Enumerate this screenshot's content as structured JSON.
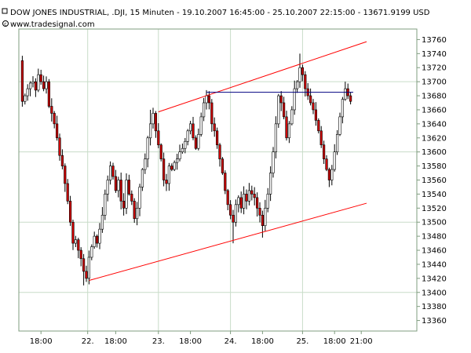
{
  "header": {
    "title": "DOW JONES INDUSTRIAL, .DJI, 15 Minuten - 19.10.2007 16:45:00 - 25.10.2007 22:15:00 - 13671.9199 USD",
    "source": "www.tradesignal.com",
    "title_icon": "square-marker-icon",
    "source_icon": "copyright-icon"
  },
  "colors": {
    "background": "#ffffff",
    "grid": "#c8dcc8",
    "frame": "#7f9c7f",
    "candle_up": "#ffffff",
    "candle_down": "#cc0000",
    "candle_outline": "#000000",
    "channel": "#ff0000",
    "horizontal_line": "#000080"
  },
  "chart_data": {
    "type": "candlestick",
    "title": "DOW JONES INDUSTRIAL, .DJI, 15 Minuten - 19.10.2007 16:45:00 - 25.10.2007 22:15:00 - 13671.9199 USD",
    "ylim": [
      13345,
      13775
    ],
    "y_ticks": [
      13360,
      13380,
      13400,
      13420,
      13440,
      13460,
      13480,
      13500,
      13520,
      13540,
      13560,
      13580,
      13600,
      13620,
      13640,
      13660,
      13680,
      13700,
      13720,
      13740,
      13760
    ],
    "x_ticks": [
      {
        "bar": 8,
        "label": "18:00",
        "grid": false
      },
      {
        "bar": 25.5,
        "label": "22.",
        "grid": true
      },
      {
        "bar": 36,
        "label": "18:00",
        "grid": false
      },
      {
        "bar": 52,
        "label": "23.",
        "grid": true
      },
      {
        "bar": 64,
        "label": "18:00",
        "grid": false
      },
      {
        "bar": 79,
        "label": "24.",
        "grid": true
      },
      {
        "bar": 91,
        "label": "18:00",
        "grid": false
      },
      {
        "bar": 106,
        "label": "25.",
        "grid": true
      },
      {
        "bar": 118,
        "label": "18:00",
        "grid": false
      },
      {
        "bar": 128,
        "label": "21:00",
        "grid": false
      }
    ],
    "grid": true,
    "price_axis": "right",
    "close_path": [
      [
        0,
        13730
      ],
      [
        1,
        13672
      ],
      [
        2,
        13680
      ],
      [
        3,
        13690
      ],
      [
        4,
        13698
      ],
      [
        5,
        13700
      ],
      [
        6,
        13688
      ],
      [
        7,
        13710
      ],
      [
        8,
        13700
      ],
      [
        9,
        13690
      ],
      [
        10,
        13700
      ],
      [
        11,
        13665
      ],
      [
        12,
        13655
      ],
      [
        13,
        13640
      ],
      [
        14,
        13620
      ],
      [
        15,
        13595
      ],
      [
        16,
        13580
      ],
      [
        17,
        13555
      ],
      [
        18,
        13530
      ],
      [
        19,
        13500
      ],
      [
        20,
        13470
      ],
      [
        21,
        13475
      ],
      [
        22,
        13460
      ],
      [
        23,
        13448
      ],
      [
        24,
        13430
      ],
      [
        25,
        13420
      ],
      [
        26,
        13450
      ],
      [
        27,
        13465
      ],
      [
        28,
        13480
      ],
      [
        29,
        13470
      ],
      [
        30,
        13490
      ],
      [
        31,
        13510
      ],
      [
        32,
        13540
      ],
      [
        33,
        13560
      ],
      [
        34,
        13580
      ],
      [
        35,
        13565
      ],
      [
        36,
        13545
      ],
      [
        37,
        13560
      ],
      [
        38,
        13530
      ],
      [
        39,
        13520
      ],
      [
        40,
        13560
      ],
      [
        41,
        13540
      ],
      [
        42,
        13530
      ],
      [
        43,
        13505
      ],
      [
        44,
        13520
      ],
      [
        45,
        13550
      ],
      [
        46,
        13575
      ],
      [
        47,
        13590
      ],
      [
        48,
        13620
      ],
      [
        49,
        13640
      ],
      [
        50,
        13655
      ],
      [
        51,
        13630
      ],
      [
        52,
        13610
      ],
      [
        53,
        13590
      ],
      [
        54,
        13560
      ],
      [
        55,
        13555
      ],
      [
        56,
        13580
      ],
      [
        57,
        13575
      ],
      [
        58,
        13585
      ],
      [
        59,
        13590
      ],
      [
        60,
        13600
      ],
      [
        61,
        13605
      ],
      [
        62,
        13615
      ],
      [
        63,
        13630
      ],
      [
        64,
        13640
      ],
      [
        65,
        13620
      ],
      [
        66,
        13605
      ],
      [
        67,
        13625
      ],
      [
        68,
        13650
      ],
      [
        69,
        13670
      ],
      [
        70,
        13680
      ],
      [
        71,
        13670
      ],
      [
        72,
        13640
      ],
      [
        73,
        13630
      ],
      [
        74,
        13610
      ],
      [
        75,
        13590
      ],
      [
        76,
        13570
      ],
      [
        77,
        13545
      ],
      [
        78,
        13525
      ],
      [
        79,
        13510
      ],
      [
        80,
        13500
      ],
      [
        81,
        13525
      ],
      [
        82,
        13535
      ],
      [
        83,
        13520
      ],
      [
        84,
        13540
      ],
      [
        85,
        13530
      ],
      [
        86,
        13545
      ],
      [
        87,
        13540
      ],
      [
        88,
        13535
      ],
      [
        89,
        13520
      ],
      [
        90,
        13510
      ],
      [
        91,
        13495
      ],
      [
        92,
        13520
      ],
      [
        93,
        13540
      ],
      [
        94,
        13570
      ],
      [
        95,
        13600
      ],
      [
        96,
        13640
      ],
      [
        97,
        13680
      ],
      [
        98,
        13670
      ],
      [
        99,
        13650
      ],
      [
        100,
        13620
      ],
      [
        101,
        13640
      ],
      [
        102,
        13660
      ],
      [
        103,
        13690
      ],
      [
        104,
        13700
      ],
      [
        105,
        13720
      ],
      [
        106,
        13710
      ],
      [
        107,
        13690
      ],
      [
        108,
        13680
      ],
      [
        109,
        13670
      ],
      [
        110,
        13660
      ],
      [
        111,
        13645
      ],
      [
        112,
        13630
      ],
      [
        113,
        13610
      ],
      [
        114,
        13590
      ],
      [
        115,
        13575
      ],
      [
        116,
        13560
      ],
      [
        117,
        13575
      ],
      [
        118,
        13600
      ],
      [
        119,
        13625
      ],
      [
        120,
        13650
      ],
      [
        121,
        13675
      ],
      [
        122,
        13690
      ],
      [
        123,
        13680
      ],
      [
        124,
        13672
      ]
    ],
    "extremes": [
      {
        "bar": 0,
        "high": 13745
      },
      {
        "bar": 24,
        "low": 13410
      },
      {
        "bar": 25,
        "low": 13415
      },
      {
        "bar": 49,
        "high": 13660
      },
      {
        "bar": 70,
        "high": 13688
      },
      {
        "bar": 80,
        "low": 13470
      },
      {
        "bar": 91,
        "low": 13478
      },
      {
        "bar": 105,
        "high": 13740
      },
      {
        "bar": 116,
        "low": 13550
      },
      {
        "bar": 122,
        "high": 13700
      }
    ],
    "lines": [
      {
        "name": "upper-channel",
        "from": {
          "bar": 52,
          "value": 13657
        },
        "to": {
          "bar": 130,
          "value": 13757
        }
      },
      {
        "name": "lower-channel",
        "from": {
          "bar": 26,
          "value": 13417
        },
        "to": {
          "bar": 130,
          "value": 13527
        }
      },
      {
        "name": "horizontal-resistance",
        "from": {
          "bar": 70,
          "value": 13685
        },
        "to": {
          "bar": 125,
          "value": 13685
        }
      }
    ]
  }
}
